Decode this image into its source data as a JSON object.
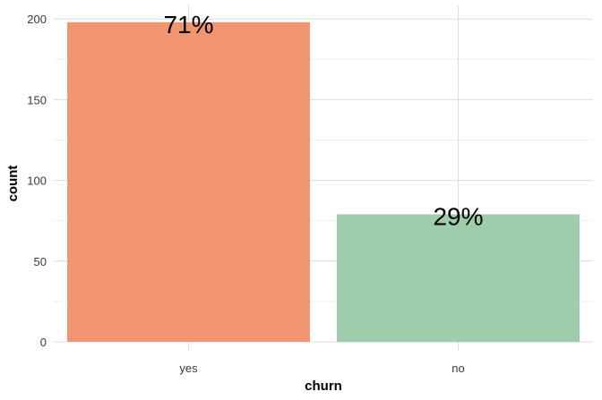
{
  "chart_data": {
    "type": "bar",
    "categories": [
      "yes",
      "no"
    ],
    "values": [
      198,
      79
    ],
    "data_labels": [
      "71%",
      "29%"
    ],
    "colors": [
      "#f0956f",
      "#9dcdaa"
    ],
    "xlabel": "churn",
    "ylabel": "count",
    "ylim": [
      0,
      209
    ],
    "yticks": [
      0,
      50,
      100,
      150,
      200
    ],
    "ytick_labels": [
      "0",
      "50",
      "100",
      "150",
      "200"
    ],
    "grid": true,
    "legend": "none"
  }
}
